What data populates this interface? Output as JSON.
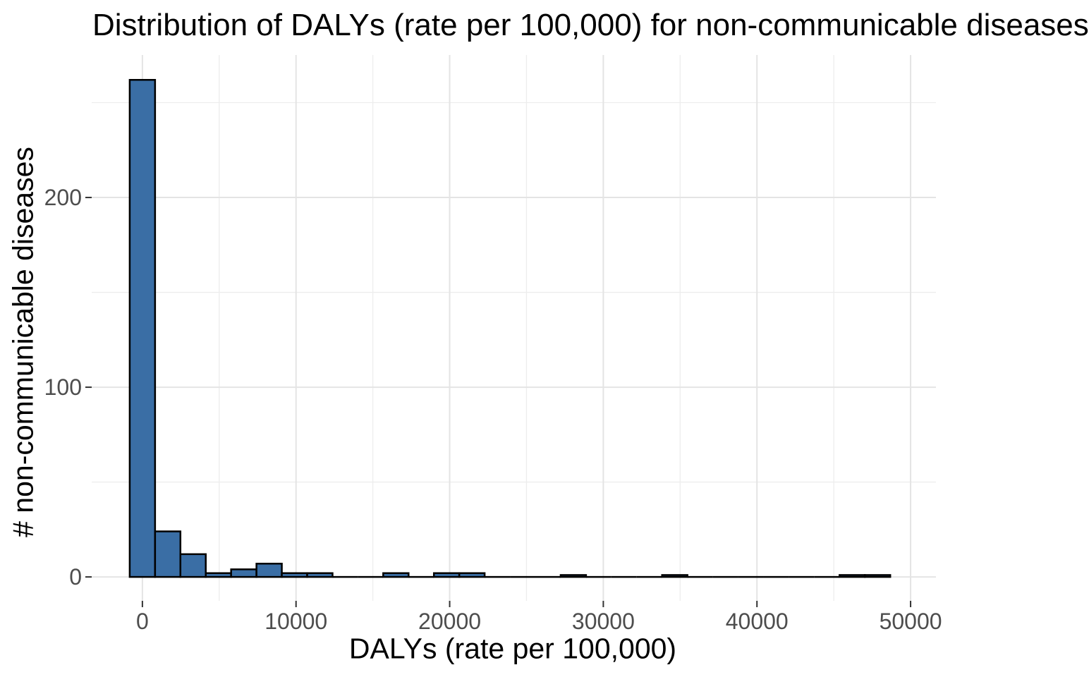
{
  "chart_data": {
    "type": "bar",
    "subtype": "histogram",
    "title": "Distribution of DALYs (rate per 100,000) for non-communicable diseases",
    "xlabel": "DALYs (rate per 100,000)",
    "ylabel": "# non-communicable diseases",
    "bin_start": -825,
    "bin_width": 1650,
    "bin_centers": [
      0,
      1650,
      3300,
      4950,
      6600,
      8250,
      9900,
      11550,
      13200,
      14850,
      16500,
      18150,
      19800,
      21450,
      23100,
      24750,
      26400,
      28050,
      29700,
      31350,
      33000,
      34650,
      36300,
      37950,
      39600,
      41250,
      42900,
      44550,
      46200,
      47850
    ],
    "counts": [
      262,
      24,
      12,
      2,
      4,
      7,
      2,
      2,
      0,
      0,
      2,
      0,
      2,
      2,
      0,
      0,
      0,
      1,
      0,
      0,
      0,
      1,
      0,
      0,
      0,
      0,
      0,
      0,
      1,
      1
    ],
    "x_ticks": [
      0,
      10000,
      20000,
      30000,
      40000,
      50000
    ],
    "x_minor_ticks": [
      5000,
      15000,
      25000,
      35000,
      45000
    ],
    "y_ticks": [
      0,
      100,
      200
    ],
    "y_minor_ticks": [
      50,
      150,
      250
    ],
    "xlim": [
      -3300,
      51650
    ],
    "ylim": [
      -12.6,
      275.1
    ],
    "grid": true,
    "legend": false,
    "colors": {
      "bar_fill": "#3A6EA5",
      "bar_stroke": "#000000",
      "grid_major": "#E4E4E4",
      "grid_minor": "#EDEDED",
      "tick_mark": "#333333",
      "tick_label": "#4D4D4D",
      "title_text": "#000000",
      "background": "#FFFFFF"
    }
  }
}
